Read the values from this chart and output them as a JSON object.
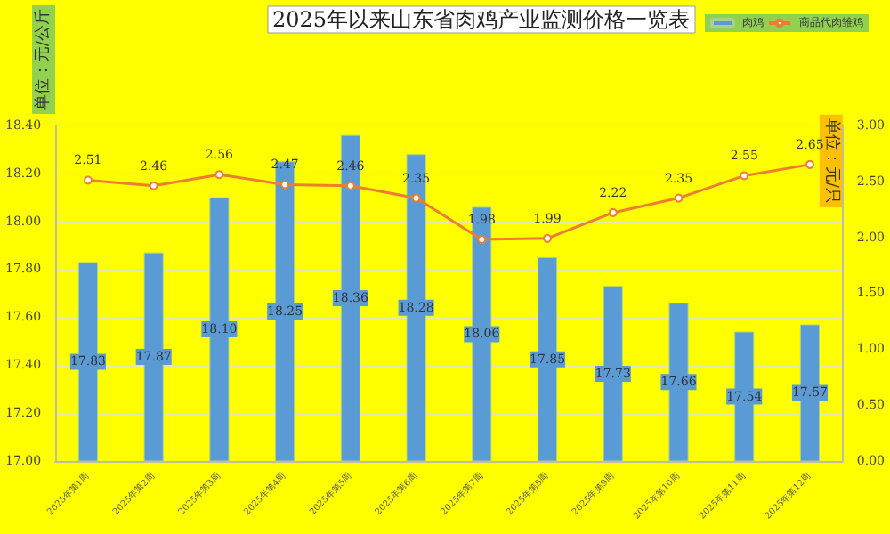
{
  "chart_data": {
    "type": "bar",
    "title": "2025年以来山东省肉鸡产业监测价格一览表",
    "ylabel": "单位：元/公斤",
    "y2label": "单位：元/只",
    "categories": [
      "2025年第1周",
      "2025年第2周",
      "2025年第3周",
      "2025年第4周",
      "2025年第5周",
      "2025年第6周",
      "2025年第7周",
      "2025年第8周",
      "2025年第9周",
      "2025年第10周",
      "2025年第11周",
      "2025年第12周"
    ],
    "series": [
      {
        "name": "肉鸡",
        "color": "#5b9bd5",
        "values": [
          17.83,
          17.87,
          18.1,
          18.25,
          18.36,
          18.28,
          18.06,
          17.85,
          17.73,
          17.66,
          17.54,
          17.57
        ],
        "value_labels": [
          "17.83",
          "17.87",
          "18.10",
          "18.25",
          "18.36",
          "18.28",
          "18.06",
          "17.85",
          "17.73",
          "17.66",
          "17.54",
          "17.57"
        ]
      },
      {
        "name": "商品代肉雏鸡",
        "type": "line",
        "axis": "y2",
        "color": "#ed7d31",
        "marker": "circle",
        "values": [
          2.51,
          2.46,
          2.56,
          2.47,
          2.46,
          2.35,
          1.98,
          1.99,
          2.22,
          2.35,
          2.55,
          2.65
        ],
        "value_labels": [
          "2.51",
          "2.46",
          "2.56",
          "2.47",
          "2.46",
          "2.35",
          "1.98",
          "1.99",
          "2.22",
          "2.35",
          "2.55",
          "2.65"
        ]
      }
    ],
    "ylim": [
      17.0,
      18.4
    ],
    "yticks": [
      {
        "value": 17.0,
        "label": "17.00"
      },
      {
        "value": 17.2,
        "label": "17.20"
      },
      {
        "value": 17.4,
        "label": "17.40"
      },
      {
        "value": 17.6,
        "label": "17.60"
      },
      {
        "value": 17.8,
        "label": "17.80"
      },
      {
        "value": 18.0,
        "label": "18.00"
      },
      {
        "value": 18.2,
        "label": "18.20"
      },
      {
        "value": 18.4,
        "label": "18.40"
      }
    ],
    "y2lim": [
      0,
      3
    ],
    "y2ticks": [
      {
        "value": 0,
        "label": "0.00"
      },
      {
        "value": 0.5,
        "label": "0.50"
      },
      {
        "value": 1,
        "label": "1.00"
      },
      {
        "value": 1.5,
        "label": "1.50"
      },
      {
        "value": 2,
        "label": "2.00"
      },
      {
        "value": 2.5,
        "label": "2.50"
      },
      {
        "value": 3,
        "label": "3.00"
      }
    ],
    "grid": "y",
    "legend": "top right"
  }
}
